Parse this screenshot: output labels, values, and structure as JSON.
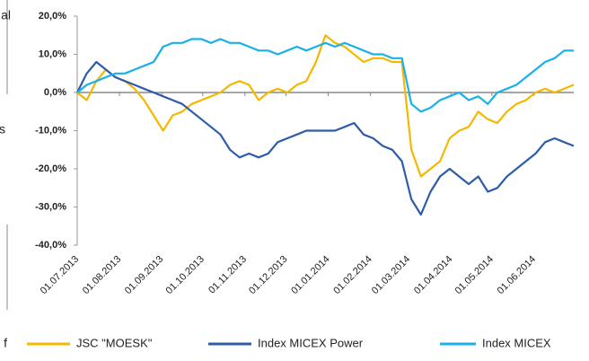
{
  "edge_text": [
    "al",
    "s",
    "f"
  ],
  "chart_data": {
    "type": "line",
    "xlim": [
      "01.07.2013",
      "30.06.2014"
    ],
    "xticks": [
      "01.07.2013",
      "01.08.2013",
      "01.09.2013",
      "01.10.2013",
      "01.11.2013",
      "01.12.2013",
      "01.01.2014",
      "01.02.2014",
      "01.03.2014",
      "01.04.2014",
      "01.05.2014",
      "01.06.2014"
    ],
    "ylim": [
      -40,
      20
    ],
    "yticks": [
      {
        "value": 20,
        "label": "20,0%"
      },
      {
        "value": 10,
        "label": "10,0%"
      },
      {
        "value": 0,
        "label": "0,0%"
      },
      {
        "value": -10,
        "label": "-10,0%"
      },
      {
        "value": -20,
        "label": "-20,0%"
      },
      {
        "value": -30,
        "label": "-30,0%"
      },
      {
        "value": -40,
        "label": "-40,0%"
      }
    ],
    "x": [
      "01.07.2013",
      "08.07.2013",
      "15.07.2013",
      "22.07.2013",
      "29.07.2013",
      "05.08.2013",
      "12.08.2013",
      "19.08.2013",
      "26.08.2013",
      "02.09.2013",
      "09.09.2013",
      "16.09.2013",
      "23.09.2013",
      "30.09.2013",
      "07.10.2013",
      "14.10.2013",
      "21.10.2013",
      "28.10.2013",
      "04.11.2013",
      "11.11.2013",
      "18.11.2013",
      "25.11.2013",
      "02.12.2013",
      "09.12.2013",
      "16.12.2013",
      "23.12.2013",
      "30.12.2013",
      "06.01.2014",
      "13.01.2014",
      "20.01.2014",
      "27.01.2014",
      "03.02.2014",
      "10.02.2014",
      "17.02.2014",
      "24.02.2014",
      "03.03.2014",
      "10.03.2014",
      "17.03.2014",
      "24.03.2014",
      "31.03.2014",
      "07.04.2014",
      "14.04.2014",
      "21.04.2014",
      "28.04.2014",
      "05.05.2014",
      "12.05.2014",
      "19.05.2014",
      "26.05.2014",
      "02.06.2014",
      "09.06.2014",
      "16.06.2014",
      "23.06.2014",
      "30.06.2014"
    ],
    "series": [
      {
        "name": "JSC \"MOESK\"",
        "color": "#f5b800",
        "values": [
          0,
          -2,
          3,
          6,
          4,
          3,
          1,
          -2,
          -6,
          -10,
          -6,
          -5,
          -3,
          -2,
          -1,
          0,
          2,
          3,
          2,
          -2,
          0,
          1,
          0,
          2,
          3,
          8,
          15,
          13,
          12,
          10,
          8,
          9,
          9,
          8,
          8,
          -15,
          -22,
          -20,
          -18,
          -12,
          -10,
          -9,
          -5,
          -7,
          -8,
          -5,
          -3,
          -2,
          0,
          1,
          0,
          1,
          2
        ]
      },
      {
        "name": "Index MICEX Power",
        "color": "#2e5caa",
        "values": [
          0,
          5,
          8,
          6,
          4,
          3,
          2,
          1,
          0,
          -1,
          -2,
          -3,
          -5,
          -7,
          -9,
          -11,
          -15,
          -17,
          -16,
          -17,
          -16,
          -13,
          -12,
          -11,
          -10,
          -10,
          -10,
          -10,
          -9,
          -8,
          -11,
          -12,
          -14,
          -15,
          -18,
          -28,
          -32,
          -26,
          -22,
          -20,
          -22,
          -24,
          -22,
          -26,
          -25,
          -22,
          -20,
          -18,
          -16,
          -13,
          -12,
          -13,
          -14
        ]
      },
      {
        "name": "Index MICEX",
        "color": "#1ab0e8",
        "values": [
          0,
          2,
          3,
          4,
          5,
          5,
          6,
          7,
          8,
          12,
          13,
          13,
          14,
          14,
          13,
          14,
          13,
          13,
          12,
          11,
          11,
          10,
          11,
          12,
          11,
          12,
          13,
          12,
          13,
          12,
          11,
          10,
          10,
          9,
          9,
          -3,
          -5,
          -4,
          -2,
          -1,
          0,
          -2,
          -1,
          -3,
          0,
          1,
          2,
          4,
          6,
          8,
          9,
          11,
          11
        ]
      }
    ]
  }
}
